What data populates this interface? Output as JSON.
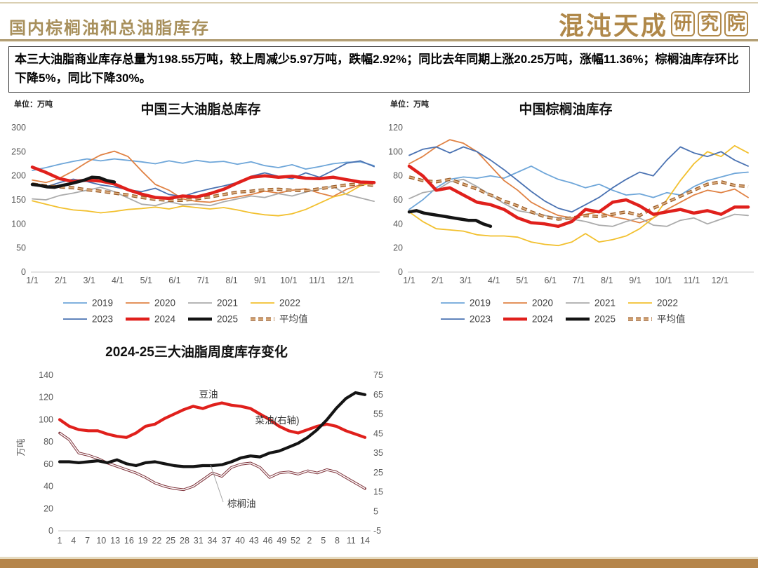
{
  "header": {
    "title": "国内棕榈油和总油脂库存",
    "logo_text": "混沌天成",
    "logo_suffix": [
      "研",
      "究",
      "院"
    ]
  },
  "summary": {
    "text": "本三大油脂商业库存总量为198.55万吨，较上周减少5.97万吨，跌幅2.92%；同比去年同期上涨20.25万吨，涨幅11.36%；棕榈油库存环比下降5%，同比下降30%。"
  },
  "colors": {
    "accent_gold": "#b5854a",
    "title_gold": "#a8905c",
    "red_2024": "#e0201c",
    "black_2025": "#141414",
    "average_dash": "#9a5b28"
  },
  "chart_data": [
    {
      "type": "line",
      "title": "中国三大油脂总库存",
      "unit": "单位：万吨",
      "y_left": {
        "min": 0,
        "max": 300,
        "ticks": [
          0,
          50,
          100,
          150,
          200,
          250,
          300
        ]
      },
      "x_ticks": [
        "1/1",
        "2/1",
        "3/1",
        "4/1",
        "5/1",
        "6/1",
        "7/1",
        "8/1",
        "9/1",
        "10/1",
        "11/1",
        "12/1"
      ],
      "legend_rows": [
        [
          0,
          1,
          2,
          3
        ],
        [
          4,
          5,
          6,
          7
        ]
      ],
      "series": [
        {
          "name": "2019",
          "color": "#6ea6d9",
          "width": 1.8,
          "values": [
            211,
            217,
            224,
            230,
            235,
            231,
            235,
            232,
            229,
            225,
            231,
            226,
            232,
            228,
            230,
            224,
            229,
            221,
            217,
            223,
            214,
            219,
            225,
            228,
            229,
            221
          ]
        },
        {
          "name": "2020",
          "color": "#e08244",
          "width": 1.8,
          "values": [
            191,
            186,
            195,
            210,
            228,
            243,
            251,
            240,
            210,
            182,
            170,
            152,
            147,
            145,
            151,
            156,
            161,
            168,
            164,
            170,
            173,
            164,
            157,
            172,
            181,
            186
          ]
        },
        {
          "name": "2021",
          "color": "#ababab",
          "width": 1.8,
          "values": [
            152,
            150,
            159,
            164,
            170,
            176,
            167,
            154,
            141,
            138,
            146,
            140,
            141,
            138,
            146,
            152,
            158,
            155,
            163,
            158,
            166,
            173,
            178,
            161,
            154,
            147
          ]
        },
        {
          "name": "2022",
          "color": "#f2c02e",
          "width": 1.8,
          "values": [
            148,
            141,
            134,
            129,
            127,
            123,
            126,
            130,
            132,
            135,
            131,
            137,
            134,
            131,
            134,
            129,
            123,
            119,
            117,
            121,
            130,
            143,
            156,
            163,
            179,
            187
          ]
        },
        {
          "name": "2023",
          "color": "#4a72b2",
          "width": 1.8,
          "values": [
            180,
            177,
            186,
            193,
            188,
            181,
            177,
            171,
            167,
            174,
            161,
            157,
            166,
            173,
            179,
            186,
            199,
            206,
            199,
            194,
            206,
            197,
            211,
            226,
            231,
            219
          ]
        },
        {
          "name": "2024",
          "color": "#e0201c",
          "width": 4.5,
          "z": 2,
          "values": [
            218,
            207,
            194,
            188,
            191,
            189,
            183,
            171,
            162,
            155,
            153,
            158,
            156,
            163,
            172,
            185,
            197,
            200,
            197,
            199,
            195,
            194,
            197,
            192,
            187,
            186
          ]
        },
        {
          "name": "2025",
          "color": "#141414",
          "width": 4.5,
          "z": 3,
          "span": 0.24,
          "values": [
            182,
            180,
            177,
            176,
            180,
            183,
            187,
            191,
            197,
            196,
            190,
            187
          ]
        },
        {
          "name": "平均值",
          "color": "#9a5b28",
          "color2": "#dcaf80",
          "style": "dash-hollow",
          "z": 1,
          "values": [
            183,
            179,
            177,
            175,
            171,
            168,
            164,
            160,
            155,
            151,
            149,
            149,
            152,
            156,
            161,
            166,
            168,
            171,
            172,
            170,
            169,
            173,
            177,
            181,
            183,
            180
          ]
        }
      ]
    },
    {
      "type": "line",
      "title": "中国棕榈油库存",
      "unit": "单位：万吨",
      "y_left": {
        "min": 0,
        "max": 120,
        "ticks": [
          0,
          20,
          40,
          60,
          80,
          100,
          120
        ]
      },
      "x_ticks": [
        "1/1",
        "2/1",
        "3/1",
        "4/1",
        "5/1",
        "6/1",
        "7/1",
        "8/1",
        "9/1",
        "10/1",
        "11/1",
        "12/1"
      ],
      "legend_rows": [
        [
          0,
          1,
          2,
          3
        ],
        [
          4,
          5,
          6,
          7
        ]
      ],
      "series": [
        {
          "name": "2019",
          "color": "#6ea6d9",
          "width": 1.8,
          "values": [
            52,
            60,
            70,
            77,
            79,
            78,
            80,
            78,
            83,
            88,
            82,
            77,
            74,
            70,
            73,
            68,
            64,
            65,
            62,
            66,
            64,
            71,
            76,
            79,
            82,
            83
          ]
        },
        {
          "name": "2020",
          "color": "#e08244",
          "width": 1.8,
          "values": [
            90,
            96,
            104,
            110,
            107,
            100,
            88,
            76,
            68,
            58,
            52,
            47,
            45,
            48,
            50,
            46,
            44,
            41,
            45,
            52,
            58,
            64,
            68,
            66,
            69,
            62
          ]
        },
        {
          "name": "2021",
          "color": "#ababab",
          "width": 1.8,
          "values": [
            61,
            66,
            68,
            75,
            77,
            71,
            64,
            57,
            51,
            49,
            47,
            45,
            44,
            42,
            39,
            38,
            42,
            45,
            39,
            38,
            43,
            45,
            40,
            44,
            48,
            47
          ]
        },
        {
          "name": "2022",
          "color": "#f2c02e",
          "width": 1.8,
          "values": [
            50,
            42,
            36,
            35,
            34,
            31,
            30,
            30,
            29,
            25,
            23,
            22,
            25,
            32,
            25,
            27,
            30,
            36,
            45,
            60,
            76,
            90,
            100,
            96,
            105,
            99
          ]
        },
        {
          "name": "2023",
          "color": "#4a72b2",
          "width": 1.8,
          "values": [
            97,
            102,
            104,
            99,
            104,
            100,
            93,
            85,
            76,
            67,
            59,
            53,
            50,
            56,
            62,
            70,
            77,
            83,
            80,
            93,
            104,
            99,
            96,
            100,
            93,
            88
          ]
        },
        {
          "name": "2024",
          "color": "#e0201c",
          "width": 4.5,
          "z": 2,
          "values": [
            88,
            80,
            68,
            70,
            64,
            58,
            56,
            52,
            45,
            41,
            40,
            38,
            42,
            52,
            50,
            58,
            60,
            55,
            48,
            50,
            52,
            49,
            51,
            48,
            54,
            54
          ]
        },
        {
          "name": "2025",
          "color": "#141414",
          "width": 4.5,
          "z": 3,
          "span": 0.24,
          "values": [
            50,
            51,
            49,
            48,
            47,
            46,
            45,
            44,
            43,
            43,
            40,
            38
          ]
        },
        {
          "name": "平均值",
          "color": "#9a5b28",
          "color2": "#dcaf80",
          "style": "dash-hollow",
          "z": 1,
          "values": [
            79,
            76,
            75,
            77,
            73,
            69,
            64,
            59,
            55,
            50,
            46,
            44,
            45,
            47,
            46,
            48,
            50,
            47,
            53,
            58,
            63,
            68,
            73,
            75,
            72,
            71
          ]
        }
      ]
    },
    {
      "type": "line",
      "title": "2024-25三大油脂周度库存变化",
      "ylabel": "万吨",
      "y_left": {
        "min": 0,
        "max": 140,
        "ticks": [
          0,
          20,
          40,
          60,
          80,
          100,
          120,
          140
        ]
      },
      "y_right": {
        "min": -5,
        "max": 75,
        "ticks": [
          -5,
          5,
          15,
          25,
          35,
          45,
          55,
          65,
          75
        ]
      },
      "x_ticks": [
        "1",
        "4",
        "7",
        "10",
        "13",
        "16",
        "19",
        "22",
        "25",
        "28",
        "31",
        "34",
        "37",
        "40",
        "43",
        "46",
        "49",
        "52",
        "2",
        "5",
        "8",
        "11",
        "14"
      ],
      "series": [
        {
          "name": "棕榈油",
          "color": "#7d3038",
          "style": "hollow",
          "values": [
            88,
            82,
            70,
            68,
            65,
            61,
            58,
            55,
            52,
            48,
            43,
            40,
            38,
            37,
            40,
            46,
            52,
            49,
            57,
            60,
            61,
            57,
            48,
            52,
            53,
            51,
            54,
            52,
            55,
            53,
            48,
            43,
            38
          ]
        },
        {
          "name": "豆油",
          "color": "#e0201c",
          "width": 4.2,
          "z": 1,
          "values": [
            100,
            94,
            91,
            90,
            90,
            87,
            85,
            84,
            88,
            94,
            96,
            101,
            105,
            109,
            112,
            110,
            113,
            115,
            113,
            112,
            110,
            105,
            100,
            94,
            90,
            88,
            91,
            94,
            96,
            94,
            90,
            87,
            84
          ]
        },
        {
          "name": "菜油(右轴)",
          "color": "#141414",
          "width": 4.2,
          "axis": "right",
          "z": 2,
          "values": [
            30.5,
            30.5,
            30,
            30.5,
            31,
            30,
            31.5,
            29.5,
            28.5,
            30,
            30.5,
            29.5,
            28.5,
            28,
            28,
            28.5,
            28.5,
            29,
            30.5,
            32.5,
            33.5,
            33,
            35,
            36,
            38,
            40,
            43,
            47,
            52,
            58,
            63,
            66,
            65
          ]
        }
      ],
      "annotations": [
        {
          "text": "豆油",
          "x": 275,
          "y": 81
        },
        {
          "text": "菜油(右轴)",
          "x": 373,
          "y": 118
        },
        {
          "text": "棕榈油",
          "x": 302,
          "y": 237,
          "anchor": "start",
          "line": [
            278,
            177,
            296,
            230
          ]
        }
      ]
    }
  ]
}
